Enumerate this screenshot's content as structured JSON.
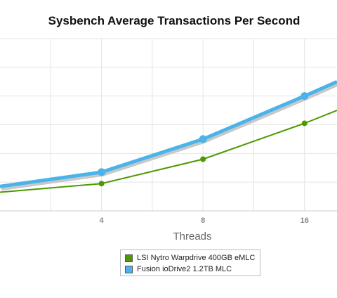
{
  "chart_data": {
    "type": "line",
    "title": "Sysbench Average Transactions Per Second",
    "xlabel": "Threads",
    "ylabel": "",
    "x_ticks": [
      "4",
      "8",
      "16"
    ],
    "x_tick_positions": [
      1,
      2,
      3
    ],
    "xlim": [
      0,
      3.32
    ],
    "ylim": [
      0,
      6
    ],
    "grid": true,
    "legend_position": "bottom-center",
    "x": [
      0,
      1,
      2,
      3,
      3.32
    ],
    "series": [
      {
        "name": "LSI Nytro Warpdrive 400GB eMLC",
        "color": "#4c9a00",
        "values": [
          0.65,
          0.95,
          1.8,
          3.05,
          3.5
        ],
        "marked": [
          false,
          true,
          true,
          true,
          false
        ]
      },
      {
        "name": "Fusion ioDrive2 1.2TB MLC",
        "color": "#4ab4ea",
        "values": [
          0.85,
          1.35,
          2.5,
          4,
          4.5
        ],
        "marked": [
          false,
          true,
          true,
          true,
          false
        ]
      }
    ]
  }
}
